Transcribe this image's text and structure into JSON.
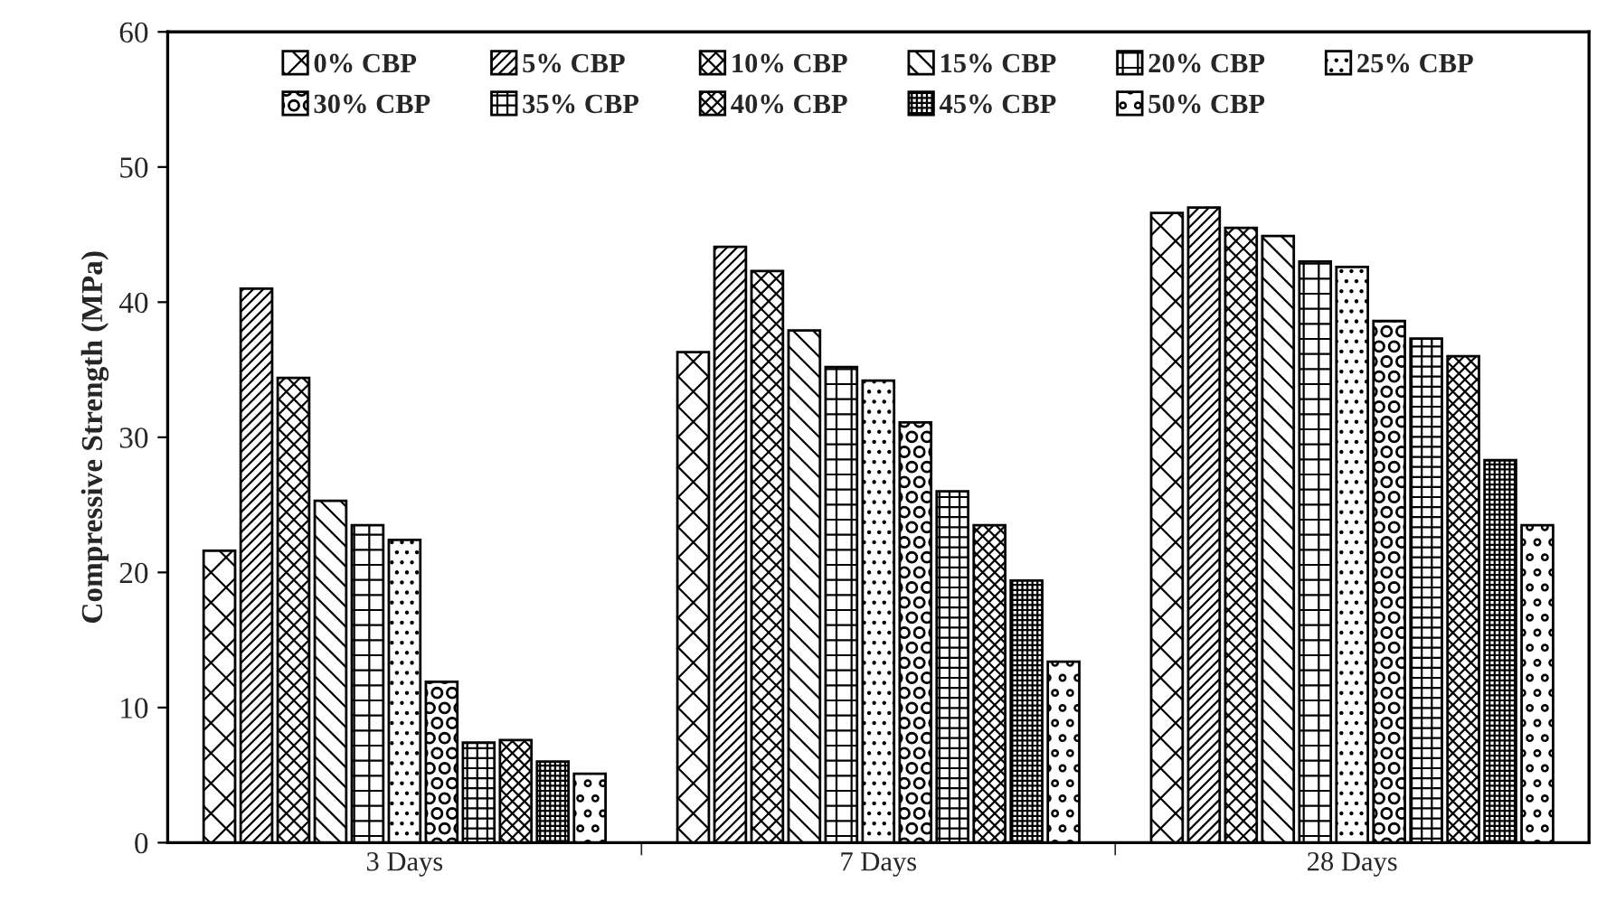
{
  "chart_data": {
    "type": "bar",
    "ylabel": "Compressive Strength (MPa)",
    "categories": [
      "3 Days",
      "7 Days",
      "28 Days"
    ],
    "ylim": [
      0,
      60
    ],
    "yticks": [
      0,
      10,
      20,
      30,
      40,
      50,
      60
    ],
    "grid": false,
    "legend": "top",
    "series": [
      {
        "name": "0% CBP",
        "color": "#000000",
        "values": [
          21.6,
          36.3,
          46.6
        ]
      },
      {
        "name": "5% CBP",
        "color": "#000000",
        "values": [
          41.0,
          44.1,
          47.0
        ]
      },
      {
        "name": "10% CBP",
        "color": "#000000",
        "values": [
          34.4,
          42.3,
          45.5
        ]
      },
      {
        "name": "15% CBP",
        "color": "#000000",
        "values": [
          25.3,
          37.9,
          44.9
        ]
      },
      {
        "name": "20% CBP",
        "color": "#000000",
        "values": [
          23.5,
          35.2,
          43.0
        ]
      },
      {
        "name": "25% CBP",
        "color": "#000000",
        "values": [
          22.4,
          34.2,
          42.6
        ]
      },
      {
        "name": "30% CBP",
        "color": "#000000",
        "values": [
          11.9,
          31.1,
          38.6
        ]
      },
      {
        "name": "35% CBP",
        "color": "#000000",
        "values": [
          7.4,
          26.0,
          37.3
        ]
      },
      {
        "name": "40% CBP",
        "color": "#000000",
        "values": [
          7.6,
          23.5,
          36.0
        ]
      },
      {
        "name": "45% CBP",
        "color": "#000000",
        "values": [
          6.0,
          19.4,
          28.3
        ]
      },
      {
        "name": "50% CBP",
        "color": "#000000",
        "values": [
          5.1,
          13.4,
          23.5
        ]
      }
    ]
  }
}
